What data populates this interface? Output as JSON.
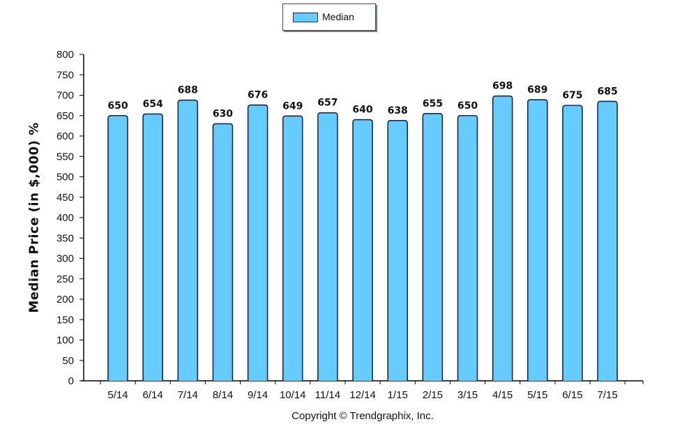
{
  "chart_data": {
    "type": "bar",
    "categories": [
      "5/14",
      "6/14",
      "7/14",
      "8/14",
      "9/14",
      "10/14",
      "11/14",
      "12/14",
      "1/15",
      "2/15",
      "3/15",
      "4/15",
      "5/15",
      "6/15",
      "7/15"
    ],
    "series": [
      {
        "name": "Median",
        "values": [
          650,
          654,
          688,
          630,
          676,
          649,
          657,
          640,
          638,
          655,
          650,
          698,
          689,
          675,
          685
        ]
      }
    ],
    "ylabel": "Median Price (in $,000) %",
    "xlabel": "",
    "ylim": [
      0,
      800
    ],
    "yticks": [
      0,
      50,
      100,
      150,
      200,
      250,
      300,
      350,
      400,
      450,
      500,
      550,
      600,
      650,
      700,
      750,
      800
    ],
    "grid": false,
    "legend_position": "top-center",
    "bar_color": "#66ccff",
    "bar_edge_color": "#1a2a40"
  },
  "legend": {
    "label": "Median"
  },
  "footer": {
    "copyright": "Copyright © Trendgraphix, Inc."
  }
}
